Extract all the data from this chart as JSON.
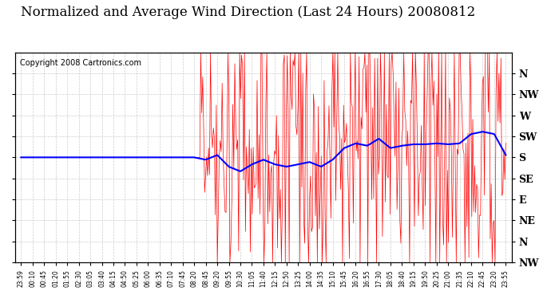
{
  "title": "Normalized and Average Wind Direction (Last 24 Hours) 20080812",
  "copyright": "Copyright 2008 Cartronics.com",
  "y_tick_labels": [
    "N",
    "NW",
    "W",
    "SW",
    "S",
    "SE",
    "E",
    "NE",
    "N",
    "NW"
  ],
  "y_tick_values": [
    0,
    45,
    90,
    135,
    180,
    225,
    270,
    315,
    360,
    405
  ],
  "ylim": [
    405,
    -45
  ],
  "background_color": "#ffffff",
  "grid_color": "#cccccc",
  "red_color": "#ff0000",
  "blue_color": "#0000ff",
  "title_fontsize": 12,
  "copyright_fontsize": 7,
  "xlabel_fontsize": 7,
  "ylabel_fontsize": 9
}
